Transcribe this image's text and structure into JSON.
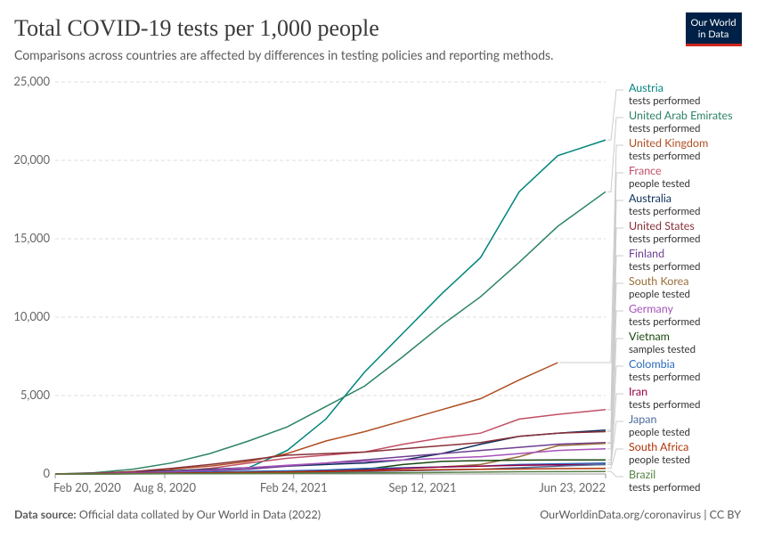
{
  "chart_data": {
    "type": "line",
    "title": "Total COVID-19 tests per 1,000 people",
    "subtitle": "Comparisons across countries are affected by differences in testing policies and reporting methods.",
    "logo": [
      "Our World",
      "in Data"
    ],
    "source_label": "Data source:",
    "source": "Official data collated by Our World in Data (2022)",
    "footer_right": "OurWorldinData.org/coronavirus | CC BY",
    "x": [
      "2020-02-20",
      "2020-04-20",
      "2020-06-19",
      "2020-08-18",
      "2020-10-17",
      "2020-12-16",
      "2021-02-14",
      "2021-04-15",
      "2021-06-14",
      "2021-08-13",
      "2021-10-12",
      "2021-12-11",
      "2022-02-09",
      "2022-04-10",
      "2022-06-23"
    ],
    "xlim": [
      "2020-02-20",
      "2022-06-23"
    ],
    "xticks": [
      {
        "value": "2020-02-20",
        "label": "Feb 20, 2020"
      },
      {
        "value": "2020-08-08",
        "label": "Aug 8, 2020"
      },
      {
        "value": "2021-02-24",
        "label": "Feb 24, 2021"
      },
      {
        "value": "2021-09-12",
        "label": "Sep 12, 2021"
      },
      {
        "value": "2022-06-23",
        "label": "Jun 23, 2022"
      }
    ],
    "ylim": [
      0,
      25000
    ],
    "yticks": [
      0,
      {
        "value": 5000,
        "label": "5,000"
      },
      {
        "value": 10000,
        "label": "10,000"
      },
      {
        "value": 15000,
        "label": "15,000"
      },
      {
        "value": 20000,
        "label": "20,000"
      },
      {
        "value": 25000,
        "label": "25,000"
      }
    ],
    "grid": true,
    "series": [
      {
        "name": "Austria",
        "unit": "tests performed",
        "color": "#00847e",
        "values": [
          0,
          30,
          80,
          200,
          300,
          400,
          1500,
          3500,
          6500,
          9000,
          11500,
          13800,
          18000,
          20300,
          21300
        ]
      },
      {
        "name": "United Arab Emirates",
        "unit": "tests performed",
        "color": "#2c8465",
        "values": [
          0,
          80,
          300,
          700,
          1300,
          2100,
          3000,
          4300,
          5600,
          7500,
          9500,
          11300,
          13500,
          15800,
          18000
        ]
      },
      {
        "name": "United Kingdom",
        "unit": "tests performed",
        "color": "#b04e22",
        "values": [
          0,
          50,
          150,
          300,
          500,
          800,
          1300,
          2100,
          2700,
          3400,
          4100,
          4800,
          6000,
          7100,
          null
        ]
      },
      {
        "name": "France",
        "unit": "people tested",
        "color": "#c15065",
        "values": [
          0,
          20,
          60,
          150,
          350,
          700,
          1000,
          1200,
          1400,
          1900,
          2300,
          2600,
          3500,
          3800,
          4100
        ]
      },
      {
        "name": "Australia",
        "unit": "tests performed",
        "color": "#0c2f5b",
        "values": [
          0,
          30,
          100,
          200,
          300,
          400,
          500,
          600,
          700,
          900,
          1300,
          1900,
          2400,
          2600,
          2800
        ]
      },
      {
        "name": "United States",
        "unit": "tests performed",
        "color": "#883039",
        "values": [
          0,
          30,
          150,
          350,
          600,
          900,
          1200,
          1300,
          1400,
          1600,
          1800,
          2000,
          2400,
          2600,
          2700
        ]
      },
      {
        "name": "Finland",
        "unit": "tests performed",
        "color": "#6d3e91",
        "values": [
          0,
          10,
          50,
          100,
          200,
          300,
          500,
          700,
          900,
          1100,
          1300,
          1500,
          1700,
          1900,
          2000
        ]
      },
      {
        "name": "South Korea",
        "unit": "people tested",
        "color": "#996d39",
        "values": [
          0,
          10,
          20,
          30,
          50,
          100,
          150,
          200,
          250,
          350,
          450,
          600,
          1100,
          1800,
          1950
        ]
      },
      {
        "name": "Germany",
        "unit": "tests performed",
        "color": "#a652ba",
        "values": [
          0,
          20,
          80,
          150,
          250,
          400,
          550,
          700,
          800,
          900,
          1000,
          1100,
          1300,
          1500,
          1600
        ]
      },
      {
        "name": "Vietnam",
        "unit": "samples tested",
        "color": "#18470f",
        "values": [
          0,
          0,
          10,
          20,
          30,
          40,
          50,
          100,
          300,
          600,
          800,
          850,
          880,
          900,
          900
        ]
      },
      {
        "name": "Colombia",
        "unit": "tests performed",
        "color": "#286bbb",
        "values": [
          0,
          5,
          30,
          70,
          120,
          170,
          200,
          250,
          350,
          400,
          450,
          500,
          600,
          650,
          700
        ]
      },
      {
        "name": "Iran",
        "unit": "tests performed",
        "color": "#970046",
        "values": [
          0,
          10,
          20,
          40,
          70,
          100,
          130,
          180,
          250,
          350,
          450,
          500,
          550,
          580,
          600
        ]
      },
      {
        "name": "Japan",
        "unit": "people tested",
        "color": "#4c6a9c",
        "values": [
          0,
          2,
          5,
          10,
          20,
          40,
          60,
          100,
          150,
          200,
          250,
          300,
          400,
          500,
          600
        ]
      },
      {
        "name": "South Africa",
        "unit": "people tested",
        "color": "#b13507",
        "values": [
          0,
          10,
          30,
          50,
          70,
          100,
          130,
          160,
          200,
          240,
          280,
          300,
          320,
          340,
          360
        ]
      },
      {
        "name": "Brazil",
        "unit": "tests performed",
        "color": "#578145",
        "values": [
          0,
          0,
          5,
          10,
          20,
          30,
          40,
          50,
          60,
          80,
          100,
          120,
          140,
          150,
          160
        ]
      }
    ]
  }
}
